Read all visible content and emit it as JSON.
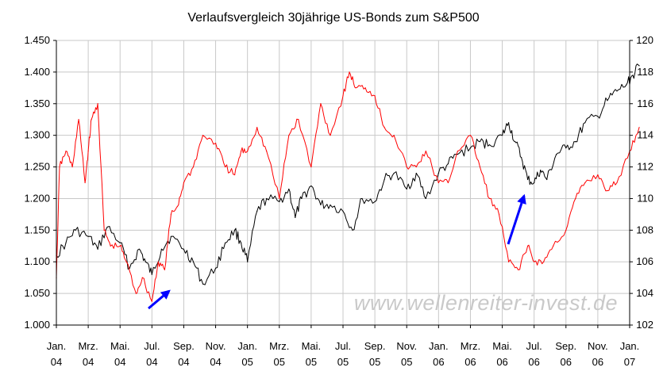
{
  "chart_data": {
    "type": "line",
    "title": "Verlaufsvergleich 30jährige US-Bonds zum S&P500",
    "watermark": "www.wellenreiter-invest.de",
    "x_ticks": [
      {
        "l1": "Jan.",
        "l2": "04"
      },
      {
        "l1": "Mrz.",
        "l2": "04"
      },
      {
        "l1": "Mai.",
        "l2": "04"
      },
      {
        "l1": "Jul.",
        "l2": "04"
      },
      {
        "l1": "Sep.",
        "l2": "04"
      },
      {
        "l1": "Nov.",
        "l2": "04"
      },
      {
        "l1": "Jan.",
        "l2": "05"
      },
      {
        "l1": "Mrz.",
        "l2": "05"
      },
      {
        "l1": "Mai.",
        "l2": "05"
      },
      {
        "l1": "Jul.",
        "l2": "05"
      },
      {
        "l1": "Sep.",
        "l2": "05"
      },
      {
        "l1": "Nov.",
        "l2": "05"
      },
      {
        "l1": "Jan.",
        "l2": "06"
      },
      {
        "l1": "Mrz.",
        "l2": "06"
      },
      {
        "l1": "Mai.",
        "l2": "06"
      },
      {
        "l1": "Jul.",
        "l2": "06"
      },
      {
        "l1": "Sep.",
        "l2": "06"
      },
      {
        "l1": "Nov.",
        "l2": "06"
      },
      {
        "l1": "Jan.",
        "l2": "07"
      }
    ],
    "left_axis": {
      "min": 1.0,
      "max": 1.45,
      "ticks": [
        "1.000",
        "1.050",
        "1.100",
        "1.150",
        "1.200",
        "1.250",
        "1.300",
        "1.350",
        "1.400",
        "1.450"
      ]
    },
    "right_axis": {
      "min": 102,
      "max": 120,
      "ticks": [
        "102",
        "104",
        "106",
        "108",
        "110",
        "112",
        "114",
        "116",
        "118",
        "120"
      ]
    },
    "grid": true,
    "legend": "none",
    "series": [
      {
        "color": "#000000",
        "axis": "left",
        "x": [
          0,
          0.3,
          0.6,
          1,
          1.3,
          1.6,
          2,
          2.3,
          2.6,
          2.8,
          3,
          3.3,
          3.6,
          4,
          4.3,
          4.6,
          5,
          5.3,
          5.6,
          5.8,
          6,
          6.3,
          6.6,
          7,
          7.3,
          7.5,
          7.7,
          8,
          8.3,
          8.6,
          9,
          9.3,
          9.6,
          10,
          10.3,
          10.6,
          11,
          11.3,
          11.6,
          12,
          12.3,
          12.6,
          13,
          13.3,
          13.6,
          14,
          14.2,
          14.4,
          14.6,
          14.8,
          15,
          15.2,
          15.4,
          15.7,
          16,
          16.3,
          16.6,
          17,
          17.3,
          17.6,
          17.9,
          18.1,
          18.3
        ],
        "values": [
          1.11,
          1.13,
          1.15,
          1.14,
          1.12,
          1.155,
          1.13,
          1.09,
          1.12,
          1.1,
          1.08,
          1.12,
          1.14,
          1.12,
          1.1,
          1.065,
          1.09,
          1.13,
          1.15,
          1.13,
          1.1,
          1.18,
          1.2,
          1.195,
          1.215,
          1.17,
          1.2,
          1.22,
          1.19,
          1.19,
          1.18,
          1.15,
          1.2,
          1.195,
          1.23,
          1.24,
          1.215,
          1.24,
          1.2,
          1.24,
          1.255,
          1.27,
          1.28,
          1.29,
          1.285,
          1.3,
          1.32,
          1.29,
          1.265,
          1.23,
          1.225,
          1.245,
          1.23,
          1.27,
          1.28,
          1.29,
          1.32,
          1.33,
          1.355,
          1.37,
          1.38,
          1.395,
          1.41
        ]
      },
      {
        "color": "#ff0000",
        "axis": "right",
        "x": [
          0,
          0.1,
          0.3,
          0.5,
          0.7,
          0.9,
          1,
          1.1,
          1.3,
          1.5,
          1.7,
          2,
          2.2,
          2.5,
          2.7,
          3,
          3.2,
          3.4,
          3.6,
          3.8,
          4,
          4.3,
          4.6,
          5,
          5.3,
          5.6,
          5.8,
          6,
          6.3,
          6.6,
          7,
          7.3,
          7.6,
          8,
          8.3,
          8.6,
          9,
          9.2,
          9.4,
          9.7,
          10,
          10.3,
          10.6,
          11,
          11.3,
          11.6,
          12,
          12.3,
          12.6,
          13,
          13.3,
          13.6,
          13.9,
          14.2,
          14.5,
          14.8,
          15,
          15.3,
          15.6,
          16,
          16.3,
          16.6,
          17,
          17.3,
          17.6,
          18,
          18.3
        ],
        "values": [
          105,
          112,
          113,
          112,
          115,
          111,
          113,
          115,
          116,
          108,
          107,
          107,
          106,
          104,
          105,
          103.5,
          106,
          105.5,
          109,
          109.5,
          111,
          112,
          114,
          113.5,
          112,
          111.5,
          113,
          113,
          114.5,
          113,
          110,
          114,
          115,
          112,
          116,
          114,
          116.5,
          118,
          117,
          117,
          116.5,
          114.5,
          114,
          112,
          112,
          113,
          111,
          111,
          113,
          114,
          112,
          110,
          109,
          106,
          105.5,
          107,
          106,
          106,
          107,
          108,
          110,
          111,
          111.5,
          110.5,
          111,
          113,
          114.5
        ]
      }
    ]
  }
}
